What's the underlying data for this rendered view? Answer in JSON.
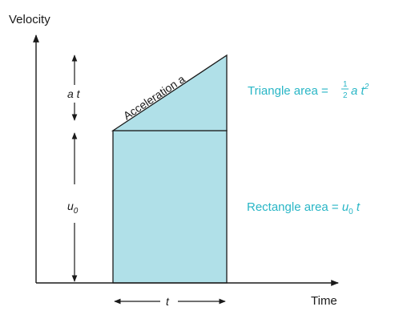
{
  "axes": {
    "y_label": "Velocity",
    "x_label": "Time"
  },
  "labels": {
    "acceleration": "Acceleration a",
    "at": "a t",
    "u0": "u",
    "u0_sub": "0",
    "t": "t"
  },
  "triangle_area": {
    "prefix": "Triangle area = ",
    "frac_num": "1",
    "frac_den": "2",
    "var": "a t",
    "exp": "2"
  },
  "rectangle_area": {
    "prefix": "Rectangle area = ",
    "var": "u",
    "sub": "0",
    "suffix": " t"
  },
  "colors": {
    "fill": "#b0e0e8",
    "accent_text": "#29b6c6",
    "ink": "#1a1a1a"
  }
}
